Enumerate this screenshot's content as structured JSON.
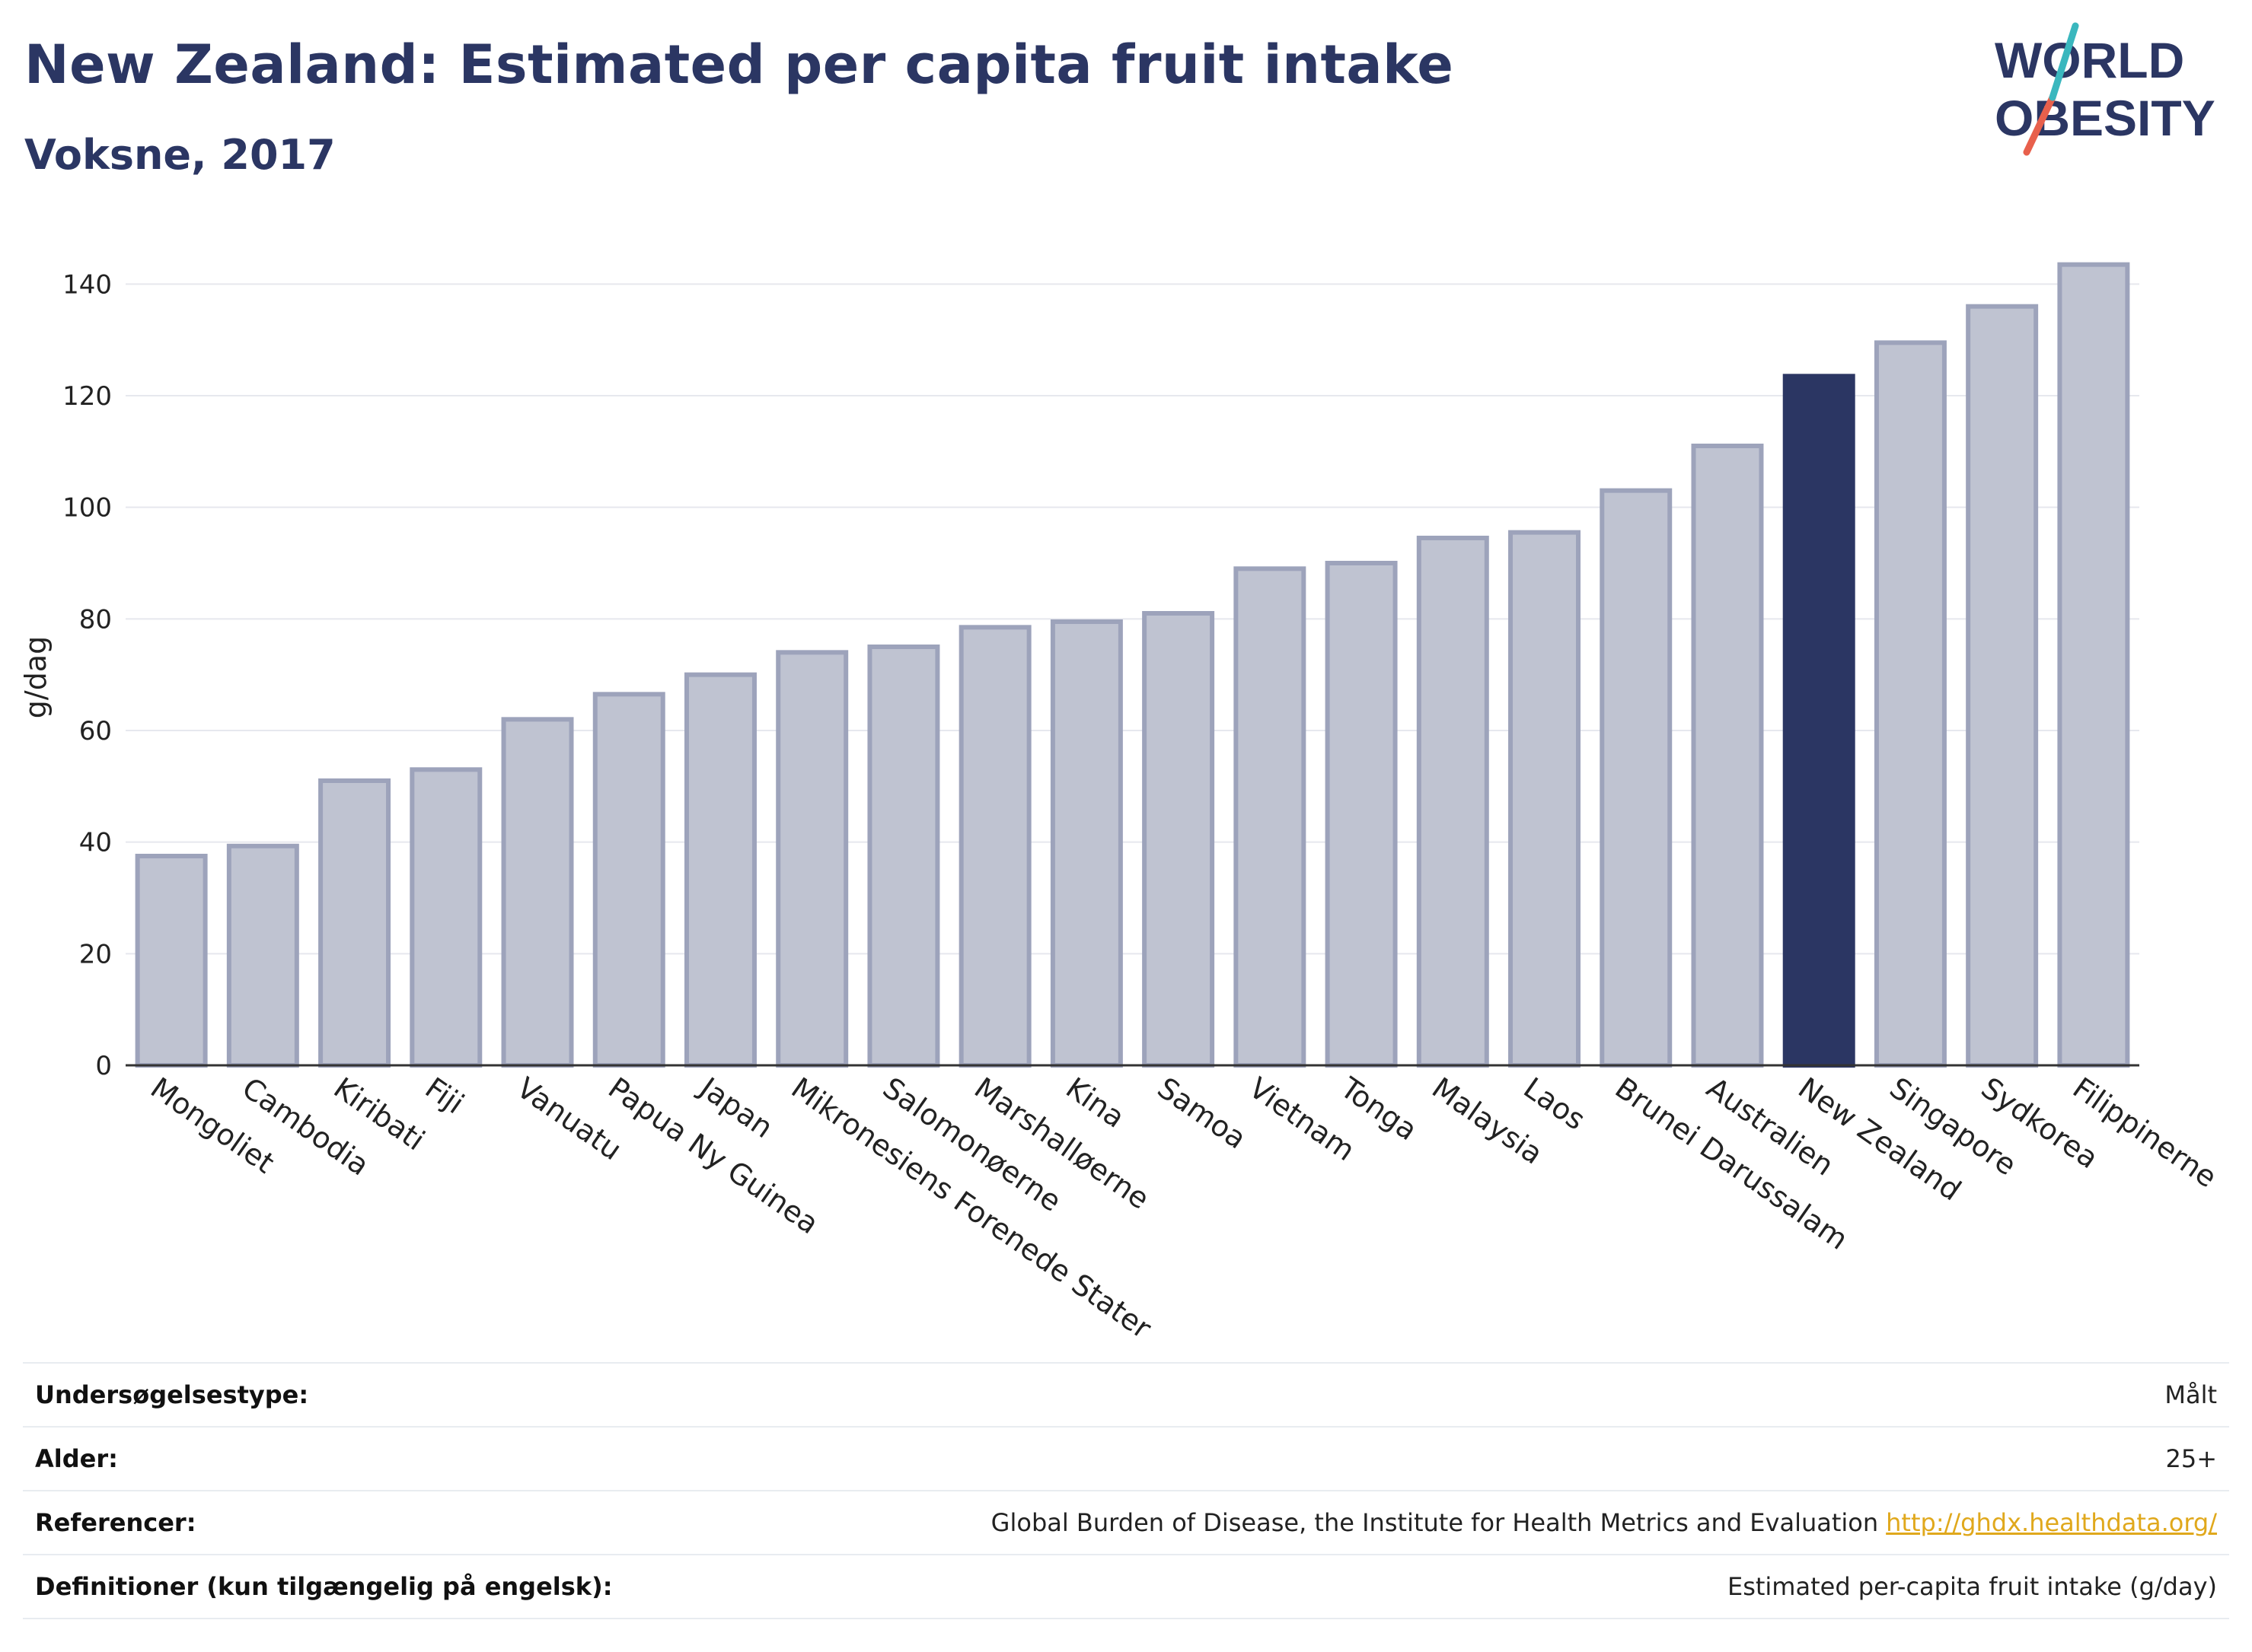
{
  "header": {
    "title": "New Zealand: Estimated per capita fruit intake",
    "subtitle": "Voksne, 2017"
  },
  "logo": {
    "line1": "WORLD",
    "line2": "OBESITY"
  },
  "chart_data": {
    "type": "bar",
    "ylabel": "g/dag",
    "xlabel": "",
    "ylim": [
      0,
      150
    ],
    "yticks": [
      0,
      20,
      40,
      60,
      80,
      100,
      120,
      140
    ],
    "grid": true,
    "highlight": "New Zealand",
    "colors": {
      "bar": "#bfc3d1",
      "bar_border": "#9da3bb",
      "highlight": "#2b3663"
    },
    "categories": [
      "Mongoliet",
      "Cambodia",
      "Kiribati",
      "Fiji",
      "Vanuatu",
      "Papua Ny Guinea",
      "Japan",
      "Mikronesiens Forenede Stater",
      "Salomonøerne",
      "Marshalløerne",
      "Kina",
      "Samoa",
      "Vietnam",
      "Tonga",
      "Malaysia",
      "Laos",
      "Brunei Darussalam",
      "Australien",
      "New Zealand",
      "Singapore",
      "Sydkorea",
      "Filippinerne"
    ],
    "values": [
      37.5,
      39.3,
      51,
      53,
      62,
      66.5,
      70,
      74,
      75,
      78.5,
      79.5,
      81,
      89,
      90,
      94.5,
      95.5,
      103,
      111,
      123.5,
      129.5,
      136,
      143.5
    ]
  },
  "meta": [
    {
      "key": "Undersøgelsestype:",
      "value": "Målt"
    },
    {
      "key": "Alder:",
      "value": "25+"
    },
    {
      "key": "Referencer:",
      "value": "Global Burden of Disease, the Institute for Health Metrics and Evaluation",
      "link": "http://ghdx.healthdata.org/"
    },
    {
      "key": "Definitioner (kun tilgængelig på engelsk):",
      "value": "Estimated per-capita fruit intake (g/day)"
    }
  ]
}
